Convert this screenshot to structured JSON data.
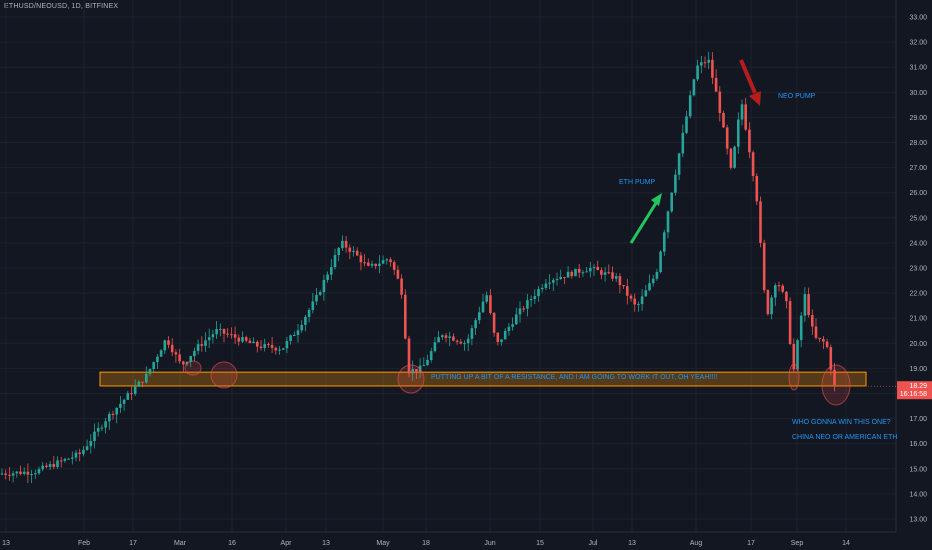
{
  "header": {
    "symbol_line": "ETHUSD/NEOUSD, 1D, BITFINEX"
  },
  "colors": {
    "background": "#131722",
    "up": "#26a69a",
    "down": "#ef5350",
    "grid": "#1e222d",
    "axis_text": "#b2b5be",
    "annotation_text": "#2196f3",
    "zone_fill": "#ff9800",
    "green_arrow": "#22c55e",
    "red_arrow": "#b71c1c",
    "price_tag": "#ef5350"
  },
  "chart_data": {
    "type": "candlestick",
    "y_axis": {
      "min": 12.5,
      "max": 33,
      "ticks": [
        "33.00",
        "32.00",
        "31.00",
        "30.00",
        "29.00",
        "28.00",
        "27.00",
        "26.00",
        "25.00",
        "24.00",
        "23.00",
        "22.00",
        "21.00",
        "20.00",
        "19.00",
        "18.00",
        "17.00",
        "16.00",
        "15.00",
        "14.00",
        "13.00"
      ]
    },
    "x_axis": {
      "labels": [
        "13",
        "Feb",
        "17",
        "Mar",
        "16",
        "Apr",
        "13",
        "May",
        "18",
        "Jun",
        "15",
        "Jul",
        "13",
        "Aug",
        "17",
        "Sep",
        "14"
      ]
    },
    "price_path": [
      [
        "13",
        14.8
      ],
      [
        "Feb",
        15.6
      ],
      [
        "17",
        17.2
      ],
      [
        "Mar",
        19.1
      ],
      [
        "16",
        19.4
      ],
      [
        "Apr",
        19.8
      ],
      [
        "13",
        24.0
      ],
      [
        "May",
        22.6
      ],
      [
        "18",
        19.6
      ],
      [
        "Jun",
        21.4
      ],
      [
        "15",
        22.2
      ],
      [
        "Jul",
        22.8
      ],
      [
        "13",
        22.8
      ],
      [
        "Aug",
        31.0
      ],
      [
        "17",
        26.5
      ],
      [
        "Sep",
        20.0
      ],
      [
        "14",
        18.29
      ]
    ],
    "last_price": "18.29",
    "countdown": "16:16:58",
    "support_zone": {
      "low": 18.3,
      "high": 18.85
    },
    "annotations": {
      "resistance": "PUTTING UP A BIT OF A RESISTANCE, AND I AM GOING TO WORK IT OUT, OH YEAH!!!!",
      "eth_pump": "ETH PUMP",
      "neo_pump": "NEO PUMP",
      "question_1": "WHO GONNA WIN THIS ONE?",
      "question_2": "CHINA NEO OR AMERICAN ETH"
    }
  }
}
